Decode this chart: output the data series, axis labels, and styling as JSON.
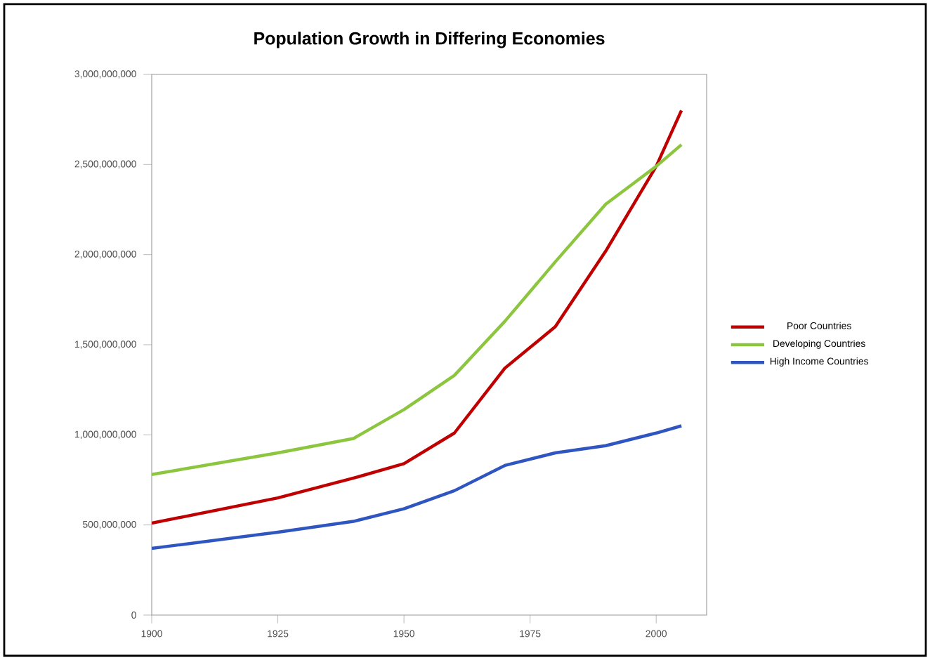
{
  "chart_data": {
    "type": "line",
    "title": "Population Growth in Differing Economies",
    "x": [
      1900,
      1925,
      1940,
      1950,
      1960,
      1970,
      1980,
      1990,
      2000,
      2005
    ],
    "series": [
      {
        "name": "Poor Countries",
        "color": "#c00000",
        "values": [
          510000000,
          650000000,
          760000000,
          840000000,
          1010000000,
          1370000000,
          1600000000,
          2020000000,
          2490000000,
          2800000000
        ]
      },
      {
        "name": "Developing Countries",
        "color": "#8cc63f",
        "values": [
          780000000,
          900000000,
          980000000,
          1140000000,
          1330000000,
          1630000000,
          1960000000,
          2280000000,
          2490000000,
          2610000000
        ]
      },
      {
        "name": "High Income Countries",
        "color": "#2f55c0",
        "values": [
          370000000,
          460000000,
          520000000,
          590000000,
          690000000,
          830000000,
          900000000,
          940000000,
          1010000000,
          1050000000
        ]
      }
    ],
    "xlim": [
      1900,
      2010
    ],
    "xticks": [
      1900,
      1925,
      1950,
      1975,
      2000
    ],
    "ylim": [
      0,
      3000000000
    ],
    "yticks": [
      0,
      {
        "value": 500000000,
        "label": "500,000,000"
      },
      {
        "value": 1000000000,
        "label": "1,000,000,000"
      },
      {
        "value": 1500000000,
        "label": "1,500,000,000"
      },
      {
        "value": 2000000000,
        "label": "2,000,000,000"
      },
      {
        "value": 2500000000,
        "label": "2,500,000,000"
      },
      {
        "value": 3000000000,
        "label": "3,000,000,000"
      }
    ],
    "legend": "right",
    "grid": false,
    "marker": "none",
    "line_style": "solid"
  }
}
